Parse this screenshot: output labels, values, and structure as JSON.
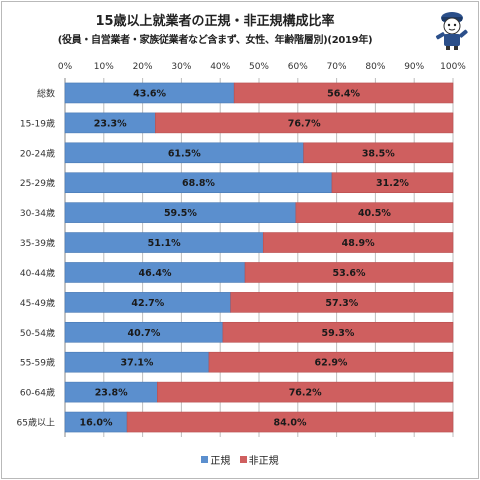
{
  "colors": {
    "regular": "#5b8fce",
    "nonregular": "#cf5f5f",
    "regular_border": "#4a79b3",
    "nonregular_border": "#b84f4f",
    "grid": "#bdbdbd"
  },
  "chart_data": {
    "type": "bar",
    "orientation": "horizontal",
    "stacked": "percent",
    "title": "15歳以上就業者の正規・非正規構成比率",
    "subtitle": "(役員・自営業者・家族従業者など含まず、女性、年齢階層別)(2019年)",
    "categories": [
      "総数",
      "15-19歳",
      "20-24歳",
      "25-29歳",
      "30-34歳",
      "35-39歳",
      "40-44歳",
      "45-49歳",
      "50-54歳",
      "55-59歳",
      "60-64歳",
      "65歳以上"
    ],
    "series": [
      {
        "name": "正規",
        "values": [
          43.6,
          23.3,
          61.5,
          68.8,
          59.5,
          51.1,
          46.4,
          42.7,
          40.7,
          37.1,
          23.8,
          16.0
        ]
      },
      {
        "name": "非正規",
        "values": [
          56.4,
          76.7,
          38.5,
          31.2,
          40.5,
          48.9,
          53.6,
          57.3,
          59.3,
          62.9,
          76.2,
          84.0
        ]
      }
    ],
    "xlim": [
      0,
      100
    ],
    "xticks": [
      "0%",
      "10%",
      "20%",
      "30%",
      "40%",
      "50%",
      "60%",
      "70%",
      "80%",
      "90%",
      "100%"
    ],
    "grid": true,
    "legend": "bottom"
  }
}
